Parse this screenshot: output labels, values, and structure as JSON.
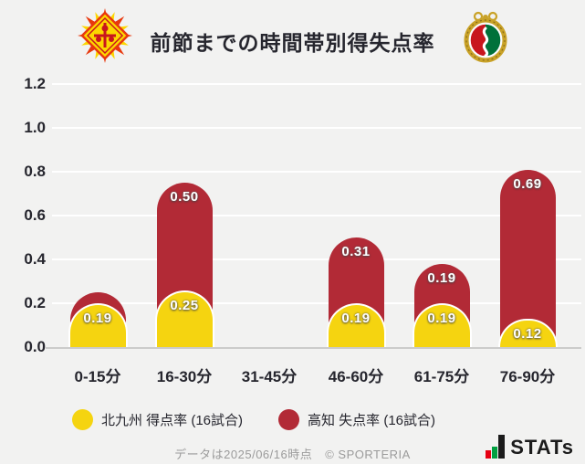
{
  "header": {
    "title": "前節までの時間帯別得失点率",
    "left_logo_icon": "kitakyushu-crest-icon",
    "right_logo_icon": "kochi-crest-icon"
  },
  "chart_data": {
    "type": "bar",
    "stacked": true,
    "title": "前節までの時間帯別得失点率",
    "categories": [
      "0-15分",
      "16-30分",
      "31-45分",
      "46-60分",
      "61-75分",
      "76-90分"
    ],
    "series": [
      {
        "name": "北九州 得点率 (16試合)",
        "color": "#f5d410",
        "values": [
          0.19,
          0.25,
          0.0,
          0.19,
          0.19,
          0.12
        ],
        "labels": [
          "0.19",
          "0.25",
          "",
          "0.19",
          "0.19",
          "0.12"
        ]
      },
      {
        "name": "高知 失点率 (16試合)",
        "color": "#b22a36",
        "values": [
          0.06,
          0.5,
          0.0,
          0.31,
          0.19,
          0.69
        ],
        "labels": [
          "",
          "0.50",
          "",
          "0.31",
          "0.19",
          "0.69"
        ]
      }
    ],
    "ylim": [
      0,
      1.2
    ],
    "yticks": [
      0.0,
      0.2,
      0.4,
      0.6,
      0.8,
      1.0,
      1.2
    ],
    "ytick_labels": [
      "0.0",
      "0.2",
      "0.4",
      "0.6",
      "0.8",
      "1.0",
      "1.2"
    ],
    "grid": true,
    "gridline_color": "#ffffff",
    "background_color": "#f2f2f1",
    "legend_position": "bottom"
  },
  "legend": {
    "items": [
      {
        "label": "北九州 得点率 (16試合)",
        "color": "#f5d410"
      },
      {
        "label": "高知 失点率 (16試合)",
        "color": "#b22a36"
      }
    ]
  },
  "footer": {
    "note": "データは2025/06/16時点",
    "copyright": "© SPORTERIA",
    "brand": "STATs"
  }
}
